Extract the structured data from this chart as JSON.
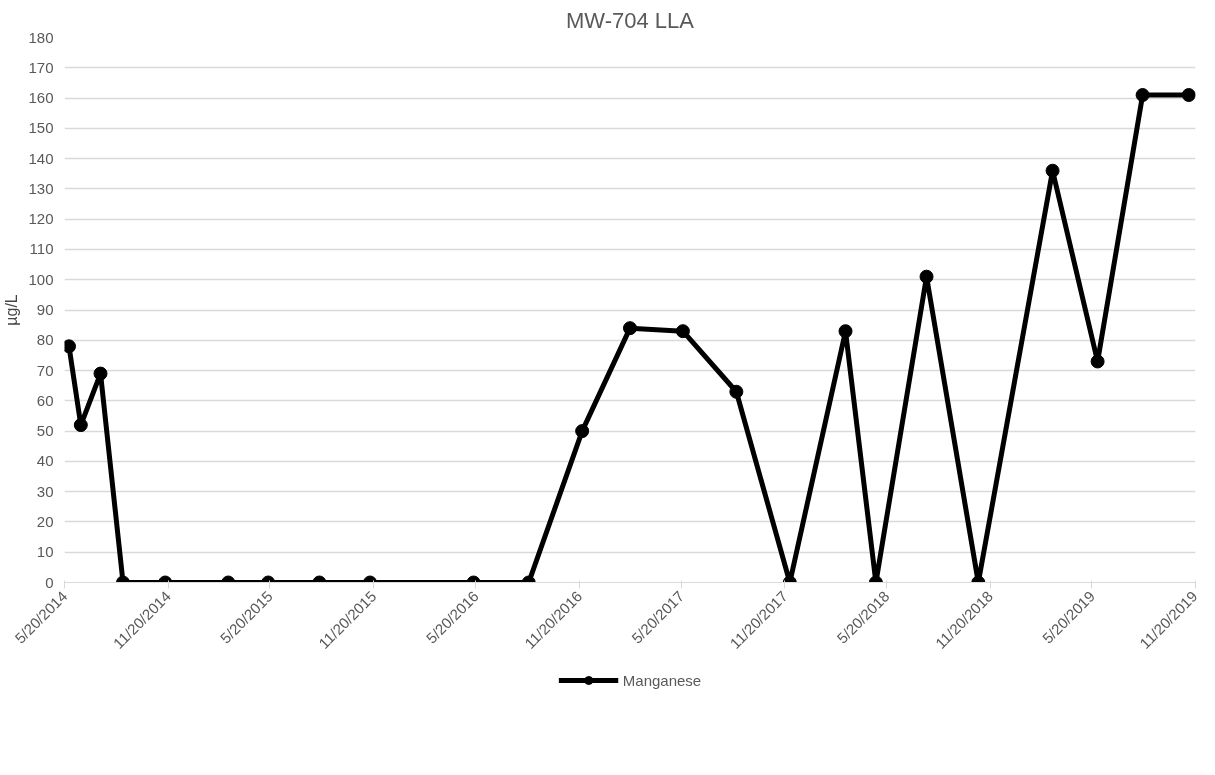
{
  "chart_data": {
    "type": "line",
    "title": "MW-704 LLA",
    "ylabel": "µg/L",
    "x": [
      "2014-05-28",
      "2014-06-18",
      "2014-07-23",
      "2014-09-01",
      "2014-11-15",
      "2015-03-07",
      "2015-05-17",
      "2015-08-16",
      "2015-11-14",
      "2016-05-16",
      "2016-08-22",
      "2016-11-25",
      "2017-02-18",
      "2017-05-23",
      "2017-08-26",
      "2017-11-29",
      "2018-03-08",
      "2018-05-01",
      "2018-07-30",
      "2018-10-30",
      "2019-03-11",
      "2019-05-30",
      "2019-08-18",
      "2019-11-08"
    ],
    "series": [
      {
        "name": "Manganese",
        "color": "#000000",
        "values": [
          78,
          52,
          69,
          0,
          0,
          0,
          0,
          0,
          0,
          0,
          0,
          50,
          84,
          83,
          63,
          0,
          83,
          0,
          101,
          0,
          136,
          73,
          161,
          161
        ]
      }
    ],
    "xlim": [
      "2014-05-20",
      "2019-11-20"
    ],
    "xticks": [
      {
        "value": "2014-05-20",
        "label": "5/20/2014"
      },
      {
        "value": "2014-11-20",
        "label": "11/20/2014"
      },
      {
        "value": "2015-05-20",
        "label": "5/20/2015"
      },
      {
        "value": "2015-11-20",
        "label": "11/20/2015"
      },
      {
        "value": "2016-05-20",
        "label": "5/20/2016"
      },
      {
        "value": "2016-11-20",
        "label": "11/20/2016"
      },
      {
        "value": "2017-05-20",
        "label": "5/20/2017"
      },
      {
        "value": "2017-11-20",
        "label": "11/20/2017"
      },
      {
        "value": "2018-05-20",
        "label": "5/20/2018"
      },
      {
        "value": "2018-11-20",
        "label": "11/20/2018"
      },
      {
        "value": "2019-05-20",
        "label": "5/20/2019"
      },
      {
        "value": "2019-11-20",
        "label": "11/20/2019"
      }
    ],
    "ylim": [
      0,
      180
    ],
    "yticks": [
      0,
      10,
      20,
      30,
      40,
      50,
      60,
      70,
      80,
      90,
      100,
      110,
      120,
      130,
      140,
      150,
      160,
      170,
      180
    ],
    "grid": "y",
    "legend": "bottom",
    "marker": "circle",
    "line_style": "solid"
  }
}
